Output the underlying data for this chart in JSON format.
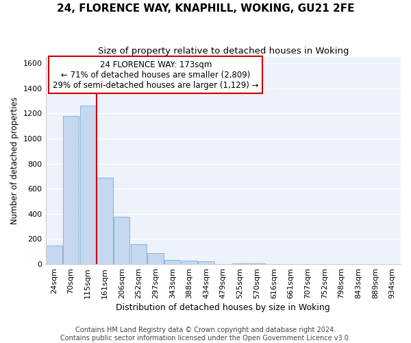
{
  "title1": "24, FLORENCE WAY, KNAPHILL, WOKING, GU21 2FE",
  "title2": "Size of property relative to detached houses in Woking",
  "xlabel": "Distribution of detached houses by size in Woking",
  "ylabel": "Number of detached properties",
  "bar_labels": [
    "24sqm",
    "70sqm",
    "115sqm",
    "161sqm",
    "206sqm",
    "252sqm",
    "297sqm",
    "343sqm",
    "388sqm",
    "434sqm",
    "479sqm",
    "525sqm",
    "570sqm",
    "616sqm",
    "661sqm",
    "707sqm",
    "752sqm",
    "798sqm",
    "843sqm",
    "889sqm",
    "934sqm"
  ],
  "bar_values": [
    150,
    1180,
    1260,
    690,
    375,
    160,
    90,
    35,
    25,
    20,
    0,
    5,
    8,
    0,
    0,
    0,
    0,
    0,
    0,
    0,
    0
  ],
  "bar_color": "#c5d8f0",
  "bar_edge_color": "#7aadd4",
  "vline_color": "#cc0000",
  "vline_x": 3.0,
  "annotation_line1": "24 FLORENCE WAY: 173sqm",
  "annotation_line2": "← 71% of detached houses are smaller (2,809)",
  "annotation_line3": "29% of semi-detached houses are larger (1,129) →",
  "annotation_box_edgecolor": "#cc0000",
  "ylim": [
    0,
    1650
  ],
  "yticks": [
    0,
    200,
    400,
    600,
    800,
    1000,
    1200,
    1400,
    1600
  ],
  "plot_bg_color": "#edf2fb",
  "grid_color": "#ffffff",
  "fig_bg_color": "#ffffff",
  "footer_text": "Contains HM Land Registry data © Crown copyright and database right 2024.\nContains public sector information licensed under the Open Government Licence v3.0.",
  "title1_fontsize": 11,
  "title2_fontsize": 9.5,
  "xlabel_fontsize": 9,
  "ylabel_fontsize": 8.5,
  "tick_fontsize": 8,
  "annotation_fontsize": 8.5,
  "footer_fontsize": 7
}
